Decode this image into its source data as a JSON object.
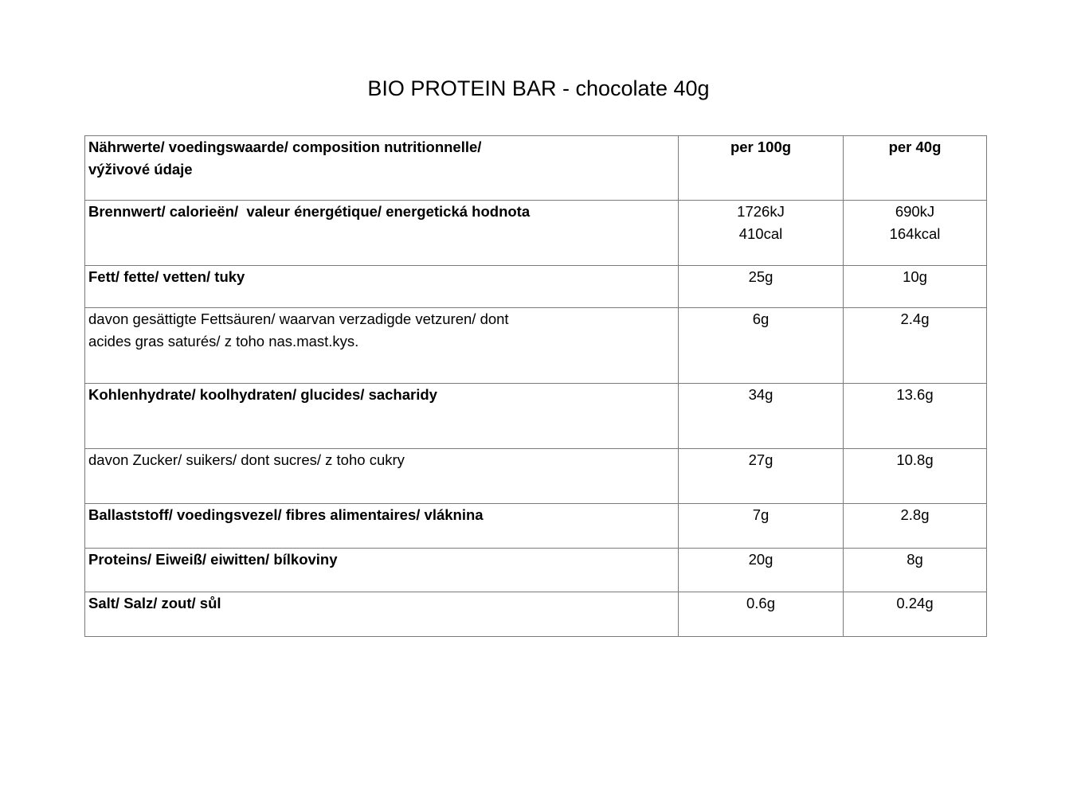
{
  "title": "BIO PROTEIN BAR - chocolate 40g",
  "table": {
    "header": {
      "label": "Nährwerte/ voedingswaarde/ composition nutritionnelle/\nvýživové údaje",
      "per100g": "per 100g",
      "per40g": "per 40g"
    },
    "rows": [
      {
        "label": "Brennwert/ calorieën/  valeur énergétique/ energetická hodnota",
        "per100g": "1726kJ\n410cal",
        "per40g": "690kJ\n164kcal"
      },
      {
        "label": "Fett/ fette/ vetten/ tuky",
        "per100g": "25g",
        "per40g": "10g"
      },
      {
        "label": "davon gesättigte Fettsäuren/ waarvan verzadigde vetzuren/ dont\nacides gras saturés/ z toho nas.mast.kys.",
        "per100g": "6g",
        "per40g": "2.4g"
      },
      {
        "label": "Kohlenhydrate/ koolhydraten/ glucides/ sacharidy",
        "per100g": "34g",
        "per40g": "13.6g"
      },
      {
        "label": "davon Zucker/ suikers/ dont sucres/ z toho cukry",
        "per100g": "27g",
        "per40g": "10.8g"
      },
      {
        "label": "Ballaststoff/ voedingsvezel/ fibres alimentaires/ vláknina",
        "per100g": "7g",
        "per40g": "2.8g"
      },
      {
        "label": "Proteins/ Eiweiß/ eiwitten/ bílkoviny",
        "per100g": "20g",
        "per40g": "8g"
      },
      {
        "label": "Salt/ Salz/ zout/ sůl",
        "per100g": "0.6g",
        "per40g": "0.24g"
      }
    ]
  }
}
